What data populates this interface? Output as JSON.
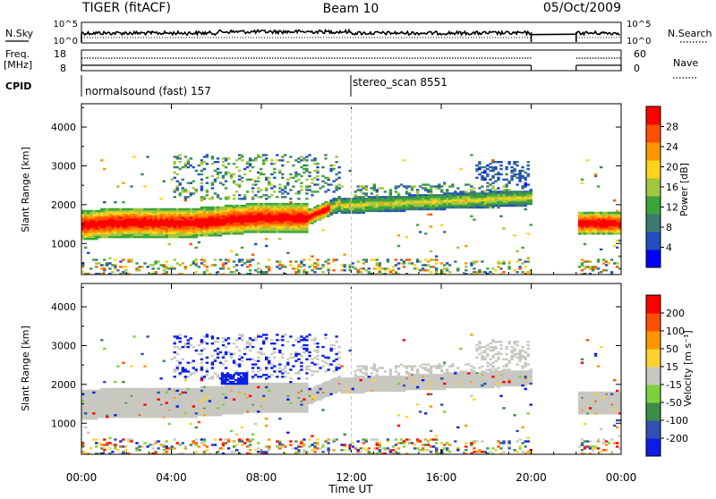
{
  "header": {
    "radar": "TIGER (fitACF)",
    "beam": "Beam 10",
    "date": "05/Oct/2009"
  },
  "top_panels": {
    "nsky_label": "N.Sky",
    "nsky_ticks": [
      "10^5",
      "10^0"
    ],
    "nsearch_label": "N.Search",
    "nsearch_ticks": [
      "10^5",
      "10^0"
    ],
    "freq_label_1": "Freq.",
    "freq_label_2": "[MHz]",
    "freq_ticks": [
      "18",
      "8"
    ],
    "nave_label": "Nave",
    "nave_ticks": [
      "60",
      "0"
    ],
    "cpid_label": "CPID",
    "cpid_segments": [
      {
        "label": "normalsound (fast) 157",
        "start_h": 0,
        "end_h": 12
      },
      {
        "label": "stereo_scan 8551",
        "start_h": 12,
        "end_h": 24
      }
    ]
  },
  "chart_data": [
    {
      "type": "heatmap",
      "panel": "power",
      "ylabel": "Slant Range [km]",
      "ylim": [
        200,
        4600
      ],
      "yticks": [
        "4000",
        "3000",
        "2000",
        "1000"
      ],
      "ytick_values": [
        4000,
        3000,
        2000,
        1000
      ],
      "xlim": [
        0,
        24
      ],
      "colorbar": {
        "label": "Power [dB]",
        "ticks": [
          "28",
          "24",
          "20",
          "16",
          "12",
          "8",
          "4"
        ],
        "tick_values": [
          28,
          24,
          20,
          16,
          12,
          8,
          4
        ],
        "range": [
          0,
          32
        ],
        "colors": [
          "#0000ff",
          "#2050c0",
          "#3c7a6e",
          "#3ca43c",
          "#a0c83c",
          "#ffd21e",
          "#ff9600",
          "#ff5000",
          "#ff0000"
        ]
      }
    },
    {
      "type": "heatmap",
      "panel": "velocity",
      "ylabel": "Slant Range [km]",
      "ylim": [
        200,
        4600
      ],
      "yticks": [
        "4000",
        "3000",
        "2000",
        "1000"
      ],
      "ytick_values": [
        4000,
        3000,
        2000,
        1000
      ],
      "xlim": [
        0,
        24
      ],
      "colorbar": {
        "label": "Velocity [m s⁻¹]",
        "ticks": [
          "200",
          "100",
          "50",
          "15",
          "-15",
          "-50",
          "-100",
          "-200"
        ],
        "colors": [
          "#0a1ee6",
          "#3250b4",
          "#3c8c46",
          "#7cd23c",
          "#c8c8c0",
          "#ffd232",
          "#ff9600",
          "#ff5000",
          "#ff0000"
        ]
      }
    }
  ],
  "time_axis": {
    "label": "Time UT",
    "ticks": [
      "00:00",
      "04:00",
      "08:00",
      "12:00",
      "16:00",
      "20:00",
      "00:00"
    ],
    "tick_hours": [
      0,
      4,
      8,
      12,
      16,
      20,
      24
    ],
    "data_gap_hours": [
      20,
      22
    ]
  }
}
